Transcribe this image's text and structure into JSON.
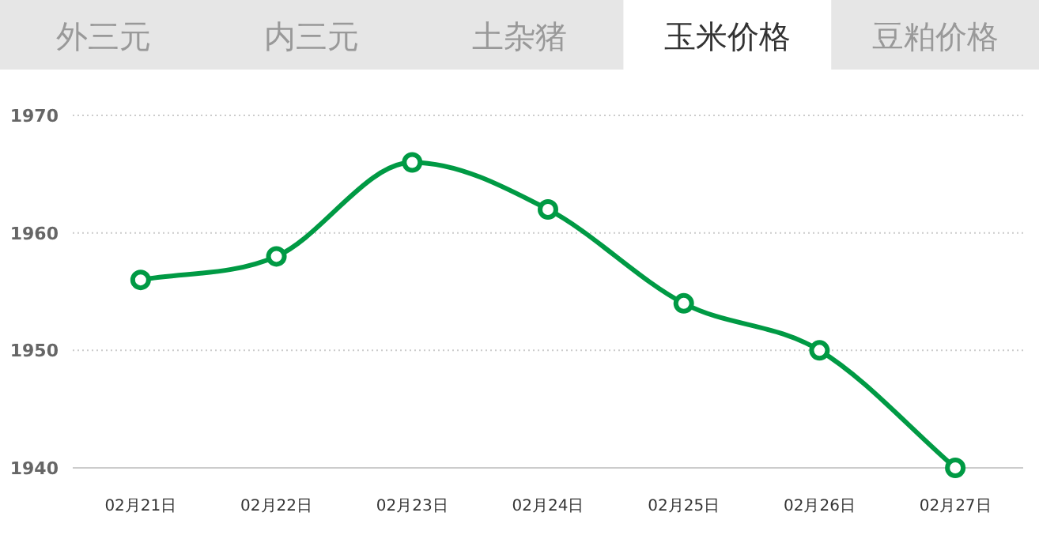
{
  "chart_data": {
    "type": "line",
    "title": "玉米价格",
    "annotations": [
      "外三元",
      "内三元",
      "土杂猪",
      "豆粕价格"
    ],
    "categories": [
      "02月21日",
      "02月22日",
      "02月23日",
      "02月24日",
      "02月25日",
      "02月26日",
      "02月27日"
    ],
    "series": [
      {
        "color": "#009a44",
        "values": [
          1956,
          1958,
          1966,
          1962,
          1954,
          1950,
          1940
        ]
      }
    ],
    "ylim": [
      1940,
      1970
    ],
    "yticks": [
      1940,
      1950,
      1960,
      1970
    ],
    "grid": "y",
    "marker": "circle",
    "line_style": "solid"
  }
}
